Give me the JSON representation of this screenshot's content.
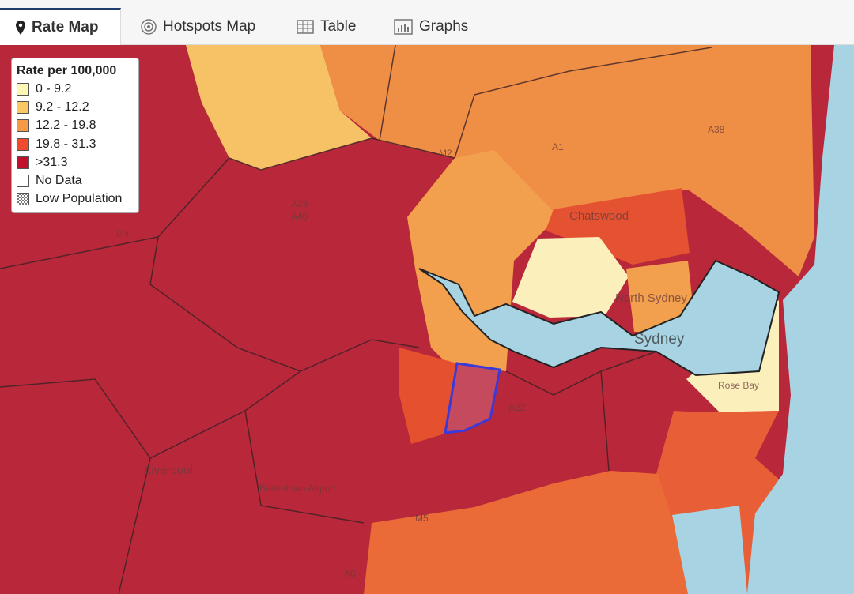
{
  "tabs": [
    "Rate Map",
    "Hotspots Map",
    "Table",
    "Graphs"
  ],
  "legend": {
    "title": "Rate per 100,000",
    "items": [
      {
        "label": "0 - 9.2",
        "color": "#fdf6b4"
      },
      {
        "label": "9.2 - 12.2",
        "color": "#fcc864"
      },
      {
        "label": "12.2 - 19.8",
        "color": "#f79a45"
      },
      {
        "label": "19.8 - 31.3",
        "color": "#ef4b2c"
      },
      {
        "label": ">31.3",
        "color": "#c0102c"
      },
      {
        "label": "No Data",
        "color": "#ffffff"
      },
      {
        "label": "Low Population"
      }
    ]
  },
  "map": {
    "labels": [
      "Chatswood",
      "North Sydney",
      "Sydney",
      "Liverpool",
      "Bankstown Airport",
      "Rose Bay",
      "M4",
      "A28",
      "A40",
      "A1",
      "A38",
      "A22",
      "M5",
      "A6",
      "M2"
    ]
  }
}
